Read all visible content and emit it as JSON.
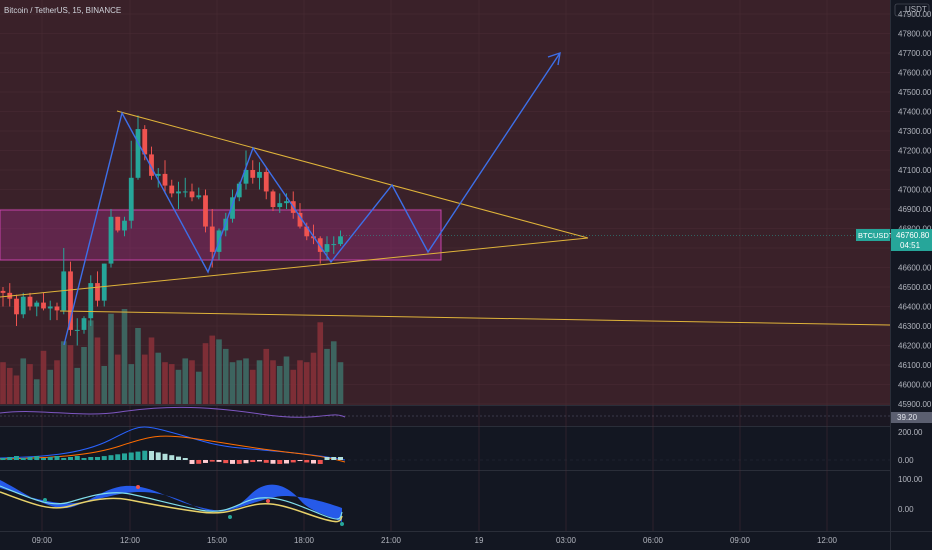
{
  "symbol_title": "Bitcoin / TetherUS, 15, BINANCE",
  "currency": "USDT",
  "price_label": {
    "ticker": "BTCUSDT",
    "price": "46760.80",
    "countdown": "04:51"
  },
  "price_axis": [
    "47900.00",
    "47800.00",
    "47700.00",
    "47600.00",
    "47500.00",
    "47400.00",
    "47300.00",
    "47200.00",
    "47100.00",
    "47000.00",
    "46900.00",
    "46800.00",
    "46700.00",
    "46600.00",
    "46500.00",
    "46400.00",
    "46300.00",
    "46200.00",
    "46100.00",
    "46000.00",
    "45900.00"
  ],
  "rsi_value": "39.20",
  "macd_axis": [
    "200.00",
    "0.00"
  ],
  "osc_axis": [
    "100.00",
    "0.00"
  ],
  "time_axis": [
    "09:00",
    "12:00",
    "15:00",
    "18:00",
    "21:00",
    "19",
    "03:00",
    "06:00",
    "09:00",
    "12:00"
  ],
  "colors": {
    "bg_main": "#3a2129",
    "zone": "#a8328c",
    "trend": "#e0b43a",
    "path": "#3d6fe8",
    "up": "#26a69a",
    "down": "#ef5350"
  },
  "chart_data": {
    "type": "candlestick",
    "title": "Bitcoin / TetherUS, 15, BINANCE",
    "ylim": [
      45850,
      47950
    ],
    "last_price": 46760.8,
    "candles": [
      [
        46480,
        46500,
        46400,
        46470
      ],
      [
        46470,
        46520,
        46400,
        46440
      ],
      [
        46440,
        46460,
        46300,
        46360
      ],
      [
        46360,
        46470,
        46340,
        46450
      ],
      [
        46450,
        46470,
        46380,
        46400
      ],
      [
        46400,
        46430,
        46350,
        46420
      ],
      [
        46420,
        46470,
        46380,
        46390
      ],
      [
        46390,
        46430,
        46330,
        46400
      ],
      [
        46400,
        46420,
        46330,
        46380
      ],
      [
        46380,
        46700,
        46360,
        46580
      ],
      [
        46580,
        46630,
        46250,
        46280
      ],
      [
        46280,
        46340,
        46200,
        46280
      ],
      [
        46280,
        46350,
        46260,
        46340
      ],
      [
        46340,
        46560,
        46300,
        46520
      ],
      [
        46520,
        46580,
        46400,
        46430
      ],
      [
        46430,
        46620,
        46400,
        46620
      ],
      [
        46620,
        46900,
        46600,
        46860
      ],
      [
        46860,
        46860,
        46780,
        46790
      ],
      [
        46790,
        46860,
        46760,
        46840
      ],
      [
        46840,
        47250,
        46800,
        47060
      ],
      [
        47060,
        47380,
        47050,
        47310
      ],
      [
        47310,
        47330,
        47150,
        47180
      ],
      [
        47180,
        47220,
        47050,
        47070
      ],
      [
        47070,
        47110,
        47010,
        47080
      ],
      [
        47080,
        47150,
        46980,
        47020
      ],
      [
        47020,
        47050,
        46960,
        46980
      ],
      [
        46980,
        47040,
        46900,
        46990
      ],
      [
        46990,
        47060,
        46960,
        46990
      ],
      [
        46990,
        47030,
        46940,
        46960
      ],
      [
        46960,
        47010,
        46950,
        46970
      ],
      [
        46970,
        47000,
        46780,
        46810
      ],
      [
        46810,
        46900,
        46600,
        46680
      ],
      [
        46680,
        46800,
        46640,
        46790
      ],
      [
        46790,
        46880,
        46760,
        46850
      ],
      [
        46850,
        47000,
        46830,
        46960
      ],
      [
        46960,
        47040,
        46940,
        47030
      ],
      [
        47030,
        47200,
        47000,
        47100
      ],
      [
        47100,
        47150,
        47030,
        47060
      ],
      [
        47060,
        47140,
        47000,
        47090
      ],
      [
        47090,
        47110,
        46950,
        46990
      ],
      [
        46990,
        47000,
        46890,
        46910
      ],
      [
        46910,
        46980,
        46880,
        46930
      ],
      [
        46930,
        46980,
        46900,
        46940
      ],
      [
        46940,
        46990,
        46850,
        46880
      ],
      [
        46880,
        46930,
        46800,
        46810
      ],
      [
        46810,
        46830,
        46740,
        46760
      ],
      [
        46760,
        46820,
        46720,
        46750
      ],
      [
        46750,
        46760,
        46620,
        46680
      ],
      [
        46680,
        46760,
        46640,
        46720
      ],
      [
        46720,
        46760,
        46670,
        46720
      ],
      [
        46720,
        46790,
        46710,
        46760
      ]
    ],
    "volume": [
      44,
      38,
      30,
      48,
      42,
      26,
      56,
      36,
      46,
      66,
      62,
      38,
      60,
      88,
      70,
      40,
      95,
      52,
      100,
      42,
      80,
      52,
      70,
      54,
      44,
      42,
      36,
      48,
      46,
      34,
      64,
      72,
      68,
      58,
      44,
      46,
      48,
      36,
      46,
      58,
      46,
      40,
      50,
      36,
      46,
      44,
      54,
      86,
      58,
      66,
      44
    ]
  }
}
